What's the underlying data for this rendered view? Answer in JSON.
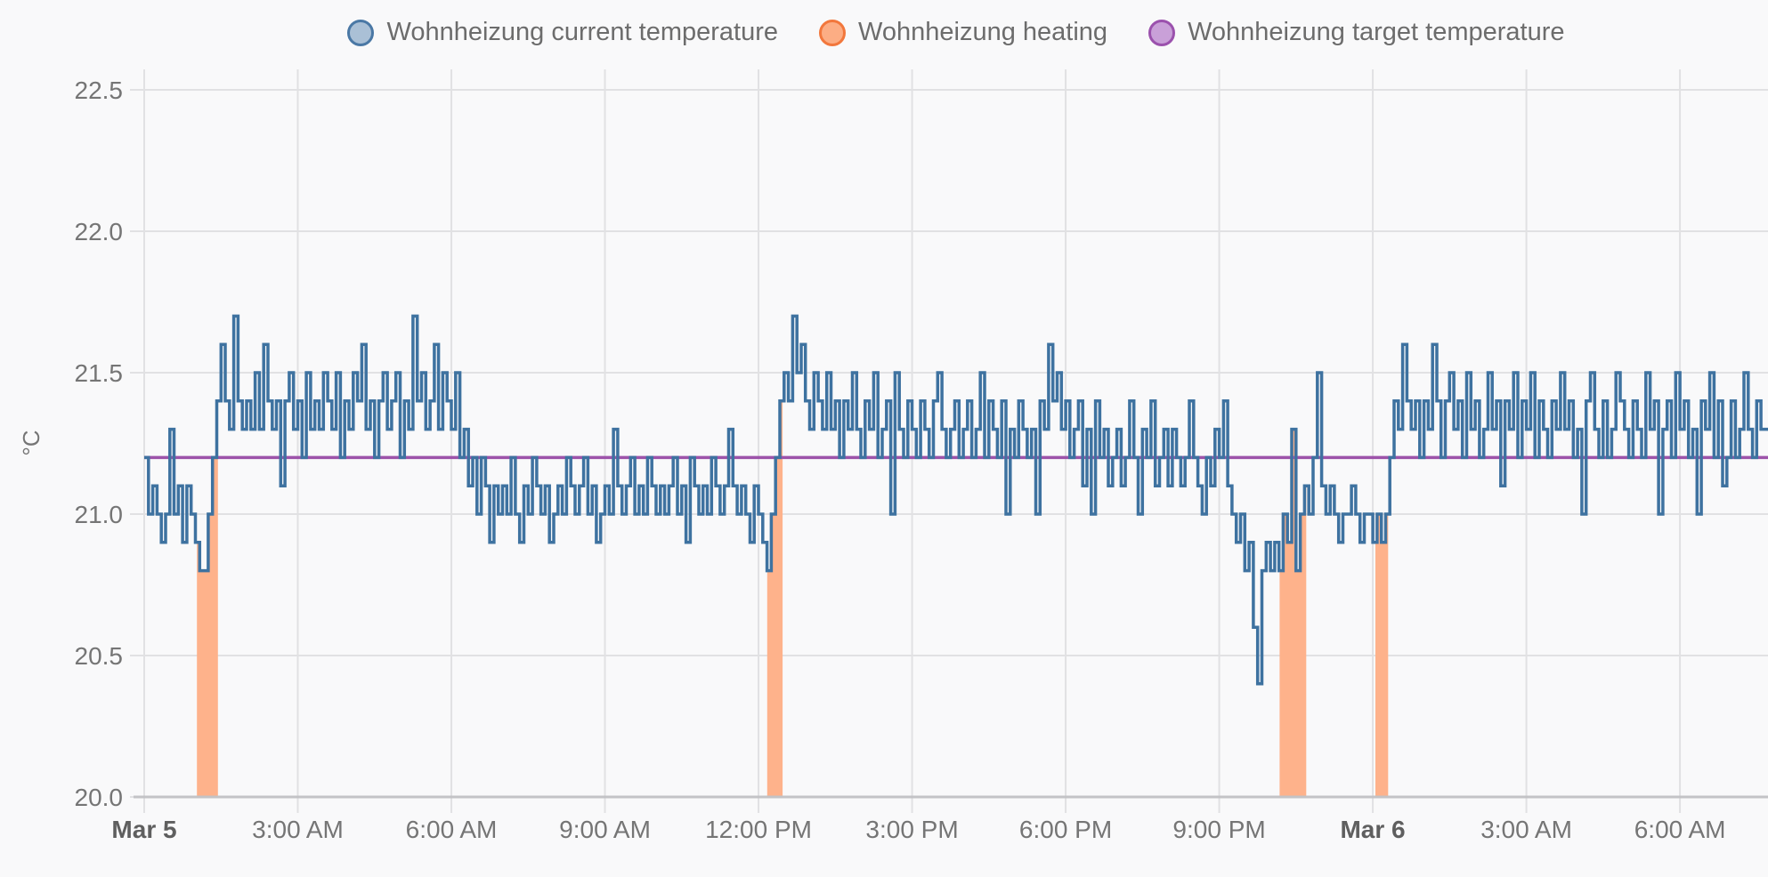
{
  "legend": {
    "items": [
      {
        "id": "current-temperature",
        "label": "Wohnheizung current temperature",
        "fill": "#aac0d6",
        "border": "#4a78a5"
      },
      {
        "id": "heating",
        "label": "Wohnheizung heating",
        "fill": "#fcad84",
        "border": "#f2773c"
      },
      {
        "id": "target-temperature",
        "label": "Wohnheizung target temperature",
        "fill": "#c9a0d8",
        "border": "#9b51ad"
      }
    ]
  },
  "chart_data": {
    "type": "line",
    "title": "",
    "xlabel": "",
    "ylabel": "°C",
    "ylim": [
      20.0,
      22.5
    ],
    "x_range_hours": [
      0,
      31.72
    ],
    "x_origin_label": "Mar 5",
    "grid": true,
    "legend_position": "top",
    "y_ticks": [
      22.5,
      22.0,
      21.5,
      21.0,
      20.5,
      20.0
    ],
    "x_ticks": [
      {
        "t": 0,
        "label": "Mar 5",
        "bold": true
      },
      {
        "t": 3,
        "label": "3:00 AM",
        "bold": false
      },
      {
        "t": 6,
        "label": "6:00 AM",
        "bold": false
      },
      {
        "t": 9,
        "label": "9:00 AM",
        "bold": false
      },
      {
        "t": 12,
        "label": "12:00 PM",
        "bold": false
      },
      {
        "t": 15,
        "label": "3:00 PM",
        "bold": false
      },
      {
        "t": 18,
        "label": "6:00 PM",
        "bold": false
      },
      {
        "t": 21,
        "label": "9:00 PM",
        "bold": false
      },
      {
        "t": 24,
        "label": "Mar 6",
        "bold": true
      },
      {
        "t": 27,
        "label": "3:00 AM",
        "bold": false
      },
      {
        "t": 30,
        "label": "6:00 AM",
        "bold": false
      }
    ],
    "series": [
      {
        "name": "Wohnheizung current temperature",
        "kind": "step-line",
        "color": "#3e72a0",
        "unit": "°C",
        "t0_hours": 0,
        "dt_hours": 0.0833333,
        "samples": [
          21.2,
          21.0,
          21.1,
          21.0,
          20.9,
          21.0,
          21.3,
          21.0,
          21.1,
          20.9,
          21.1,
          21.0,
          20.9,
          20.8,
          20.8,
          21.0,
          21.2,
          21.4,
          21.6,
          21.4,
          21.3,
          21.7,
          21.4,
          21.3,
          21.4,
          21.3,
          21.5,
          21.3,
          21.6,
          21.4,
          21.3,
          21.4,
          21.1,
          21.4,
          21.5,
          21.3,
          21.4,
          21.2,
          21.5,
          21.3,
          21.4,
          21.3,
          21.5,
          21.4,
          21.3,
          21.5,
          21.2,
          21.4,
          21.3,
          21.5,
          21.4,
          21.6,
          21.3,
          21.4,
          21.2,
          21.4,
          21.5,
          21.3,
          21.4,
          21.5,
          21.2,
          21.4,
          21.3,
          21.7,
          21.4,
          21.5,
          21.3,
          21.4,
          21.6,
          21.3,
          21.5,
          21.4,
          21.3,
          21.5,
          21.2,
          21.3,
          21.1,
          21.2,
          21.0,
          21.2,
          21.1,
          20.9,
          21.1,
          21.0,
          21.1,
          21.0,
          21.2,
          21.0,
          20.9,
          21.1,
          21.0,
          21.2,
          21.1,
          21.0,
          21.1,
          20.9,
          21.0,
          21.1,
          21.0,
          21.2,
          21.1,
          21.0,
          21.1,
          21.2,
          21.0,
          21.1,
          20.9,
          21.0,
          21.1,
          21.0,
          21.3,
          21.1,
          21.0,
          21.1,
          21.2,
          21.0,
          21.1,
          21.0,
          21.2,
          21.1,
          21.0,
          21.1,
          21.0,
          21.1,
          21.2,
          21.0,
          21.1,
          20.9,
          21.2,
          21.1,
          21.0,
          21.1,
          21.0,
          21.2,
          21.1,
          21.0,
          21.1,
          21.3,
          21.1,
          21.0,
          21.1,
          21.0,
          20.9,
          21.1,
          21.0,
          20.9,
          20.8,
          21.0,
          21.2,
          21.4,
          21.5,
          21.4,
          21.7,
          21.5,
          21.6,
          21.4,
          21.3,
          21.5,
          21.4,
          21.3,
          21.5,
          21.3,
          21.4,
          21.2,
          21.4,
          21.3,
          21.5,
          21.3,
          21.2,
          21.4,
          21.3,
          21.5,
          21.2,
          21.3,
          21.4,
          21.0,
          21.5,
          21.3,
          21.2,
          21.4,
          21.3,
          21.2,
          21.4,
          21.3,
          21.2,
          21.4,
          21.5,
          21.3,
          21.2,
          21.3,
          21.4,
          21.2,
          21.3,
          21.4,
          21.2,
          21.3,
          21.5,
          21.2,
          21.4,
          21.3,
          21.2,
          21.4,
          21.0,
          21.3,
          21.2,
          21.4,
          21.3,
          21.2,
          21.3,
          21.0,
          21.4,
          21.3,
          21.6,
          21.4,
          21.5,
          21.3,
          21.4,
          21.2,
          21.3,
          21.4,
          21.1,
          21.3,
          21.0,
          21.4,
          21.2,
          21.3,
          21.1,
          21.2,
          21.3,
          21.1,
          21.2,
          21.4,
          21.2,
          21.0,
          21.3,
          21.2,
          21.4,
          21.1,
          21.2,
          21.3,
          21.1,
          21.3,
          21.2,
          21.1,
          21.2,
          21.4,
          21.2,
          21.1,
          21.0,
          21.2,
          21.1,
          21.3,
          21.2,
          21.4,
          21.1,
          21.0,
          20.9,
          21.0,
          20.8,
          20.9,
          20.6,
          20.4,
          20.8,
          20.9,
          20.8,
          20.9,
          20.8,
          21.0,
          20.9,
          21.3,
          20.8,
          21.0,
          21.1,
          21.0,
          21.2,
          21.5,
          21.1,
          21.0,
          21.1,
          21.0,
          20.9,
          21.0,
          21.0,
          21.1,
          21.0,
          20.9,
          21.0,
          21.0,
          20.9,
          21.0,
          20.9,
          21.0,
          21.2,
          21.4,
          21.3,
          21.6,
          21.4,
          21.3,
          21.4,
          21.2,
          21.4,
          21.3,
          21.6,
          21.4,
          21.2,
          21.4,
          21.5,
          21.3,
          21.4,
          21.2,
          21.5,
          21.3,
          21.4,
          21.2,
          21.3,
          21.5,
          21.3,
          21.4,
          21.1,
          21.4,
          21.3,
          21.5,
          21.2,
          21.4,
          21.3,
          21.5,
          21.2,
          21.4,
          21.3,
          21.2,
          21.4,
          21.3,
          21.5,
          21.3,
          21.4,
          21.2,
          21.3,
          21.0,
          21.4,
          21.5,
          21.3,
          21.2,
          21.4,
          21.2,
          21.3,
          21.5,
          21.4,
          21.3,
          21.2,
          21.4,
          21.3,
          21.2,
          21.5,
          21.3,
          21.4,
          21.0,
          21.3,
          21.4,
          21.2,
          21.5,
          21.3,
          21.4,
          21.2,
          21.3,
          21.0,
          21.4,
          21.3,
          21.5,
          21.2,
          21.4,
          21.1,
          21.2,
          21.4,
          21.2,
          21.3,
          21.5,
          21.3,
          21.2,
          21.4,
          21.3
        ]
      },
      {
        "name": "Wohnheizung target temperature",
        "kind": "flat-line",
        "color": "#9d53aa",
        "unit": "°C",
        "value": 21.2
      },
      {
        "name": "Wohnheizung heating",
        "kind": "area-under-current",
        "color": "#feb28b",
        "on_intervals_hours": [
          [
            1.03,
            1.44
          ],
          [
            12.17,
            12.47
          ],
          [
            22.18,
            22.7
          ],
          [
            24.05,
            24.3
          ]
        ]
      }
    ]
  },
  "colors": {
    "background": "#f9f9fa",
    "grid": "#e1e1e3",
    "axis_line": "#c3c3c6",
    "tick_text": "#757575",
    "date_tick_text": "#5f5f5f",
    "legend_text": "#6c6c6c"
  }
}
